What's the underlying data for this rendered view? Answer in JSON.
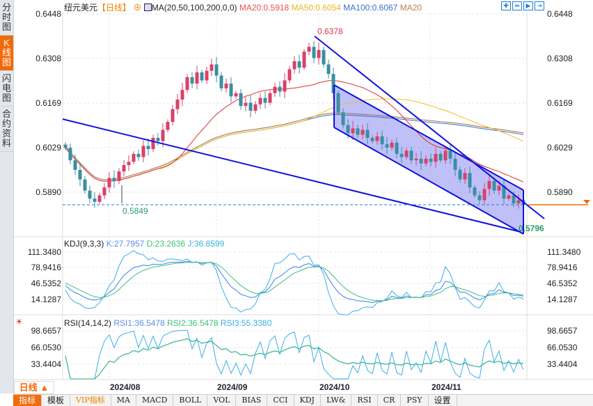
{
  "sidebar": {
    "items": [
      {
        "label": "分时图"
      },
      {
        "label": "K线图",
        "active": true
      },
      {
        "label": "闪电图"
      },
      {
        "label": "合约资料"
      }
    ]
  },
  "header": {
    "symbol": "纽元美元",
    "period": "【日线】",
    "ma_label": "MA(20,50,100,200,0,0)",
    "ma20": "MA20:0.5918",
    "ma50": "MA50:0.6054",
    "ma100": "MA100:0.6067",
    "ma200": "MA20"
  },
  "price_axis": {
    "left": [
      "0.6448",
      "0.6308",
      "0.6169",
      "0.6029",
      "0.5890"
    ],
    "right": [
      "0.6448",
      "0.6308",
      "0.6169",
      "0.6029",
      "0.5890"
    ]
  },
  "annotations": {
    "high": "0.6378",
    "low_left": "0.5849",
    "low_right": "0.5796"
  },
  "kdj": {
    "title": "KDJ(9,3,3)",
    "k": "K:27.7957",
    "d": "D:23.2636",
    "j": "J:36.8599",
    "ticks": [
      "111.3480",
      "78.9416",
      "46.5352",
      "14.1287"
    ]
  },
  "rsi": {
    "title": "RSI(14,14,2)",
    "rsi1": "RSI1:36.5478",
    "rsi2": "RSI2:36.5478",
    "rsi3": "RSI3:55.3380",
    "ticks": [
      "98.6657",
      "66.0530",
      "33.4404"
    ]
  },
  "period_selector": "日线 ▲",
  "dates": [
    "2024/08",
    "2024/09",
    "2024/10",
    "2024/11"
  ],
  "toolbar": [
    "指标",
    "模板",
    "VIP指标",
    "MA",
    "MACD",
    "BOLL",
    "VOL",
    "BIAS",
    "CCI",
    "KDJ",
    "LW&",
    "RSI",
    "CR",
    "PSY",
    "设置"
  ],
  "colors": {
    "up": "#d9416a",
    "down": "#3a8fa3",
    "ma20": "#e03030",
    "ma50": "#f0c020",
    "ma100": "#2a6fd0",
    "ma200": "#a06a40",
    "accent": "#f26b0a",
    "drawing": "#1010e0"
  },
  "chart_data": {
    "type": "candlestick",
    "ylim": [
      0.578,
      0.647
    ],
    "closes": [
      0.6029,
      0.599,
      0.596,
      0.593,
      0.5895,
      0.587,
      0.586,
      0.588,
      0.5905,
      0.5935,
      0.5925,
      0.5955,
      0.5975,
      0.5985,
      0.601,
      0.6,
      0.6035,
      0.6025,
      0.606,
      0.605,
      0.6085,
      0.611,
      0.615,
      0.618,
      0.621,
      0.625,
      0.623,
      0.6265,
      0.624,
      0.627,
      0.629,
      0.6255,
      0.6215,
      0.623,
      0.619,
      0.62,
      0.616,
      0.617,
      0.6145,
      0.6165,
      0.6185,
      0.617,
      0.62,
      0.622,
      0.6205,
      0.624,
      0.6275,
      0.63,
      0.628,
      0.633,
      0.6345,
      0.631,
      0.6335,
      0.629,
      0.626,
      0.62,
      0.614,
      0.61,
      0.6075,
      0.609,
      0.607,
      0.6085,
      0.606,
      0.605,
      0.6065,
      0.604,
      0.603,
      0.6045,
      0.601,
      0.6,
      0.602,
      0.599,
      0.5995,
      0.598,
      0.5995,
      0.5985,
      0.601,
      0.599,
      0.602,
      0.5995,
      0.596,
      0.593,
      0.595,
      0.5905,
      0.588,
      0.5865,
      0.59,
      0.5925,
      0.5895,
      0.591,
      0.587,
      0.588,
      0.5855,
      0.5865,
      0.585
    ]
  }
}
